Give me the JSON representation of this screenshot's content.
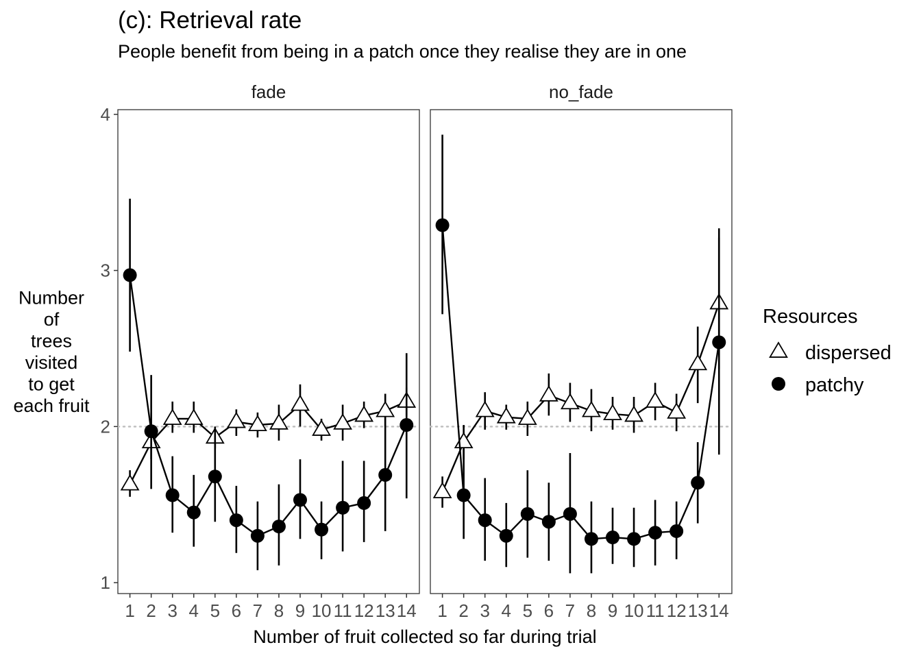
{
  "chart_data": {
    "type": "scatter",
    "title": "(c): Retrieval rate",
    "subtitle": "People benefit from being in a patch once they realise they are in one",
    "xlabel": "Number of fruit collected so far during trial",
    "ylabel": [
      "Number",
      "of",
      "trees",
      "visited",
      "to get",
      "each fruit"
    ],
    "x": [
      1,
      2,
      3,
      4,
      5,
      6,
      7,
      8,
      9,
      10,
      11,
      12,
      13,
      14
    ],
    "x_tick_labels": [
      "1",
      "2",
      "3",
      "4",
      "5",
      "6",
      "7",
      "8",
      "9",
      "10",
      "11",
      "12",
      "13",
      "14"
    ],
    "ylim": [
      0.93,
      4.03
    ],
    "y_ticks": [
      1,
      2,
      3,
      4
    ],
    "y_tick_labels": [
      "1",
      "2",
      "3",
      "4"
    ],
    "reference_line": 2,
    "grid": false,
    "legend": {
      "title": "Resources",
      "placement": "right",
      "entries": [
        {
          "label": "dispersed",
          "shape": "open-triangle"
        },
        {
          "label": "patchy",
          "shape": "filled-circle"
        }
      ]
    },
    "facets": [
      {
        "label": "fade",
        "series": [
          {
            "name": "dispersed",
            "shape": "open-triangle",
            "y": [
              1.63,
              1.9,
              2.05,
              2.05,
              1.93,
              2.03,
              2.01,
              2.02,
              2.14,
              1.98,
              2.02,
              2.07,
              2.1,
              2.16
            ],
            "lower": [
              1.55,
              1.79,
              1.96,
              1.96,
              1.86,
              1.94,
              1.93,
              1.91,
              2.0,
              1.91,
              1.91,
              1.99,
              2.0,
              2.07
            ],
            "upper": [
              1.72,
              2.01,
              2.16,
              2.16,
              2.0,
              2.11,
              2.09,
              2.14,
              2.27,
              2.05,
              2.14,
              2.16,
              2.21,
              2.25
            ]
          },
          {
            "name": "patchy",
            "shape": "filled-circle",
            "y": [
              2.97,
              1.97,
              1.56,
              1.45,
              1.68,
              1.4,
              1.3,
              1.36,
              1.53,
              1.34,
              1.48,
              1.51,
              1.69,
              2.01
            ],
            "lower": [
              2.48,
              1.6,
              1.32,
              1.23,
              1.39,
              1.19,
              1.08,
              1.11,
              1.28,
              1.15,
              1.2,
              1.26,
              1.33,
              1.54
            ],
            "upper": [
              3.46,
              2.33,
              1.81,
              1.69,
              1.98,
              1.62,
              1.52,
              1.63,
              1.79,
              1.52,
              1.78,
              1.78,
              2.06,
              2.47
            ]
          }
        ]
      },
      {
        "label": "no_fade",
        "series": [
          {
            "name": "dispersed",
            "shape": "open-triangle",
            "y": [
              1.58,
              1.9,
              2.1,
              2.06,
              2.05,
              2.2,
              2.15,
              2.1,
              2.08,
              2.07,
              2.16,
              2.09,
              2.4,
              2.79
            ],
            "lower": [
              1.48,
              1.79,
              1.98,
              1.98,
              1.94,
              2.07,
              2.03,
              1.97,
              1.98,
              1.96,
              2.04,
              1.97,
              2.15,
              2.37
            ],
            "upper": [
              1.68,
              2.01,
              2.22,
              2.14,
              2.16,
              2.34,
              2.28,
              2.24,
              2.19,
              2.19,
              2.28,
              2.21,
              2.64,
              3.21
            ]
          },
          {
            "name": "patchy",
            "shape": "filled-circle",
            "y": [
              3.29,
              1.56,
              1.4,
              1.3,
              1.44,
              1.39,
              1.44,
              1.28,
              1.29,
              1.28,
              1.32,
              1.33,
              1.64,
              2.54
            ],
            "lower": [
              2.72,
              1.28,
              1.14,
              1.1,
              1.16,
              1.14,
              1.06,
              1.06,
              1.12,
              1.1,
              1.11,
              1.15,
              1.38,
              1.82
            ],
            "upper": [
              3.87,
              1.86,
              1.67,
              1.51,
              1.72,
              1.64,
              1.83,
              1.52,
              1.48,
              1.48,
              1.53,
              1.52,
              1.9,
              3.27
            ]
          }
        ]
      }
    ]
  }
}
